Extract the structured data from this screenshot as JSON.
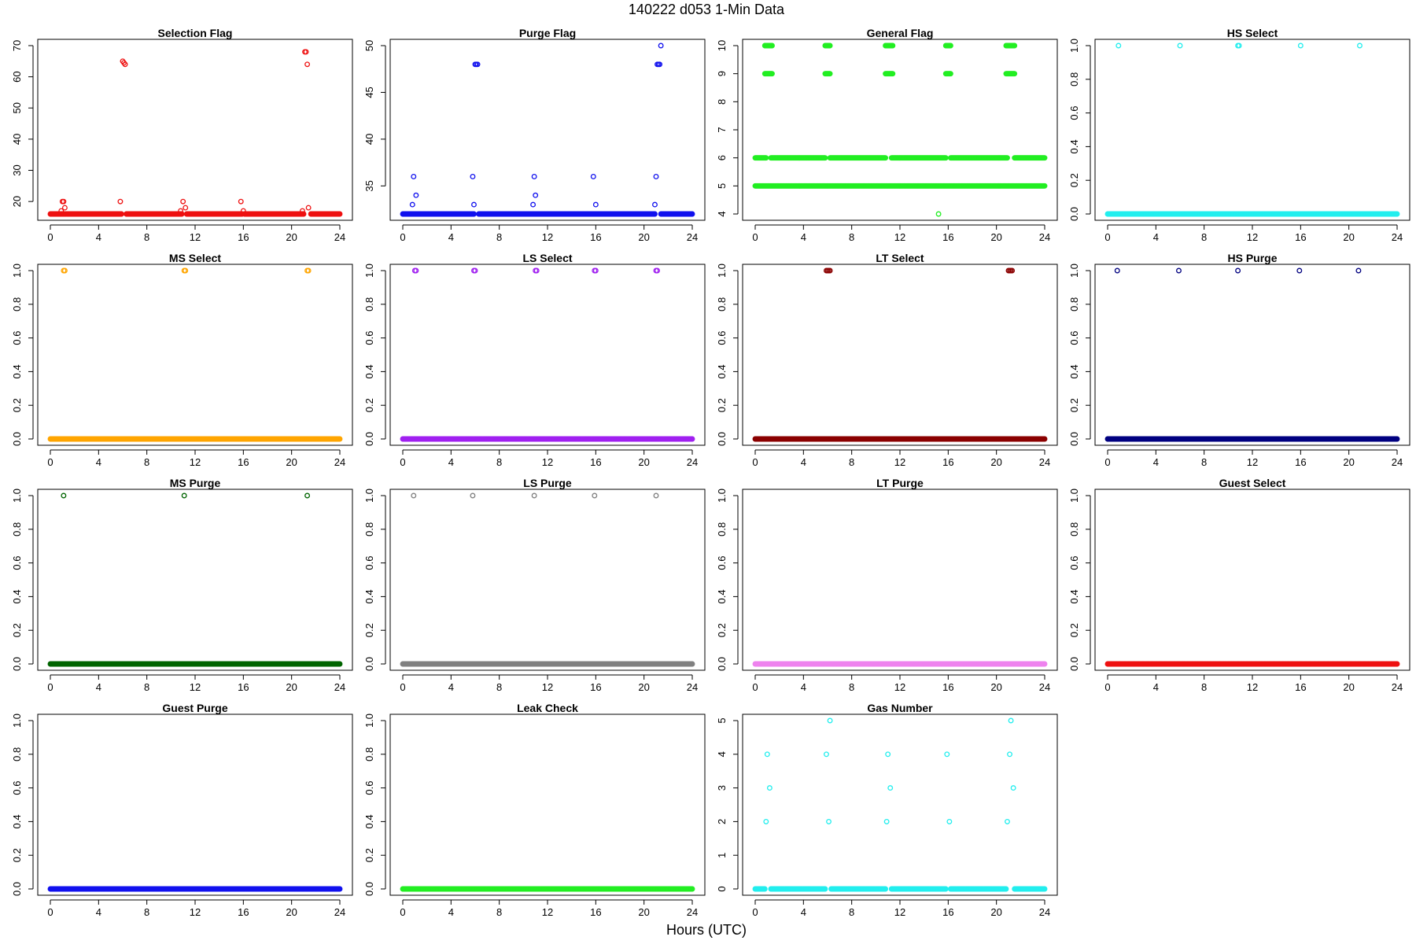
{
  "figure": {
    "title": "140222   d053   1-Min Data",
    "xlabel": "Hours (UTC)"
  },
  "chart_data": [
    {
      "type": "scatter",
      "title": "Selection Flag",
      "color": "#ee1111",
      "xlim": [
        0,
        24
      ],
      "ylim": [
        16,
        70
      ],
      "x_ticks": [
        0,
        4,
        8,
        12,
        16,
        20,
        24
      ],
      "y_ticks": [
        20,
        30,
        40,
        50,
        60,
        70
      ],
      "base_series": [
        {
          "from": 0.0,
          "to": 1.3,
          "y": 16
        },
        {
          "from": 1.4,
          "to": 5.9,
          "y": 16
        },
        {
          "from": 6.3,
          "to": 10.9,
          "y": 16
        },
        {
          "from": 11.3,
          "to": 15.9,
          "y": 16
        },
        {
          "from": 16.1,
          "to": 21.0,
          "y": 16
        },
        {
          "from": 21.6,
          "to": 24.0,
          "y": 16
        }
      ],
      "points": [
        {
          "x": 0.9,
          "y": 17
        },
        {
          "x": 1.0,
          "y": 20
        },
        {
          "x": 1.1,
          "y": 20
        },
        {
          "x": 1.2,
          "y": 18
        },
        {
          "x": 5.8,
          "y": 20
        },
        {
          "x": 6.0,
          "y": 65
        },
        {
          "x": 6.1,
          "y": 64.5
        },
        {
          "x": 6.2,
          "y": 64
        },
        {
          "x": 10.8,
          "y": 17
        },
        {
          "x": 11.0,
          "y": 20
        },
        {
          "x": 11.2,
          "y": 18
        },
        {
          "x": 15.8,
          "y": 20
        },
        {
          "x": 16.0,
          "y": 17
        },
        {
          "x": 20.9,
          "y": 17
        },
        {
          "x": 21.1,
          "y": 68
        },
        {
          "x": 21.2,
          "y": 68
        },
        {
          "x": 21.3,
          "y": 64
        },
        {
          "x": 21.4,
          "y": 18
        }
      ]
    },
    {
      "type": "scatter",
      "title": "Purge Flag",
      "color": "#1111ee",
      "xlim": [
        0,
        24
      ],
      "ylim": [
        32,
        50
      ],
      "x_ticks": [
        0,
        4,
        8,
        12,
        16,
        20,
        24
      ],
      "y_ticks": [
        35,
        40,
        45,
        50
      ],
      "base_series": [
        {
          "from": 0.0,
          "to": 5.9,
          "y": 32
        },
        {
          "from": 6.3,
          "to": 20.9,
          "y": 32
        },
        {
          "from": 21.4,
          "to": 24.0,
          "y": 32
        }
      ],
      "points": [
        {
          "x": 0.8,
          "y": 33
        },
        {
          "x": 0.9,
          "y": 36
        },
        {
          "x": 1.1,
          "y": 34
        },
        {
          "x": 5.8,
          "y": 36
        },
        {
          "x": 5.9,
          "y": 33
        },
        {
          "x": 6.0,
          "y": 48
        },
        {
          "x": 6.1,
          "y": 48
        },
        {
          "x": 6.2,
          "y": 48
        },
        {
          "x": 10.8,
          "y": 33
        },
        {
          "x": 10.9,
          "y": 36
        },
        {
          "x": 11.0,
          "y": 34
        },
        {
          "x": 15.8,
          "y": 36
        },
        {
          "x": 16.0,
          "y": 33
        },
        {
          "x": 20.9,
          "y": 33
        },
        {
          "x": 21.0,
          "y": 36
        },
        {
          "x": 21.1,
          "y": 48
        },
        {
          "x": 21.2,
          "y": 48
        },
        {
          "x": 21.3,
          "y": 48
        },
        {
          "x": 21.4,
          "y": 50
        }
      ]
    },
    {
      "type": "scatter",
      "title": "General Flag",
      "color": "#22ee22",
      "xlim": [
        0,
        24
      ],
      "ylim": [
        4,
        10
      ],
      "x_ticks": [
        0,
        4,
        8,
        12,
        16,
        20,
        24
      ],
      "y_ticks": [
        4,
        5,
        6,
        7,
        8,
        9,
        10
      ],
      "base_series": [
        {
          "from": 0.0,
          "to": 24.0,
          "y": 5
        },
        {
          "from": 0.0,
          "to": 0.9,
          "y": 6
        },
        {
          "from": 1.3,
          "to": 5.8,
          "y": 6
        },
        {
          "from": 6.2,
          "to": 10.8,
          "y": 6
        },
        {
          "from": 11.3,
          "to": 15.8,
          "y": 6
        },
        {
          "from": 16.2,
          "to": 20.9,
          "y": 6
        },
        {
          "from": 21.5,
          "to": 24.0,
          "y": 6
        },
        {
          "from": 0.8,
          "to": 1.4,
          "y": 9
        },
        {
          "from": 0.8,
          "to": 1.4,
          "y": 10
        },
        {
          "from": 5.8,
          "to": 6.2,
          "y": 9
        },
        {
          "from": 5.8,
          "to": 6.2,
          "y": 10
        },
        {
          "from": 10.8,
          "to": 11.4,
          "y": 9
        },
        {
          "from": 10.8,
          "to": 11.4,
          "y": 10
        },
        {
          "from": 15.8,
          "to": 16.2,
          "y": 9
        },
        {
          "from": 15.8,
          "to": 16.2,
          "y": 10
        },
        {
          "from": 20.8,
          "to": 21.5,
          "y": 9
        },
        {
          "from": 20.8,
          "to": 21.5,
          "y": 10
        }
      ],
      "points": [
        {
          "x": 15.2,
          "y": 4
        }
      ]
    },
    {
      "type": "scatter",
      "title": "HS Select",
      "color": "#22eeee",
      "xlim": [
        0,
        24
      ],
      "ylim": [
        0,
        1
      ],
      "x_ticks": [
        0,
        4,
        8,
        12,
        16,
        20,
        24
      ],
      "y_ticks": [
        0.0,
        0.2,
        0.4,
        0.6,
        0.8,
        1.0
      ],
      "base_series": [
        {
          "from": 0.0,
          "to": 24.0,
          "y": 0
        }
      ],
      "points": [
        {
          "x": 0.9,
          "y": 1
        },
        {
          "x": 6.0,
          "y": 1
        },
        {
          "x": 10.8,
          "y": 1
        },
        {
          "x": 10.9,
          "y": 1
        },
        {
          "x": 16.0,
          "y": 1
        },
        {
          "x": 20.9,
          "y": 1
        }
      ]
    },
    {
      "type": "scatter",
      "title": "MS Select",
      "color": "#ffa500",
      "xlim": [
        0,
        24
      ],
      "ylim": [
        0,
        1
      ],
      "x_ticks": [
        0,
        4,
        8,
        12,
        16,
        20,
        24
      ],
      "y_ticks": [
        0.0,
        0.2,
        0.4,
        0.6,
        0.8,
        1.0
      ],
      "base_series": [
        {
          "from": 0.0,
          "to": 24.0,
          "y": 0
        }
      ],
      "points": [
        {
          "x": 1.1,
          "y": 1
        },
        {
          "x": 1.2,
          "y": 1
        },
        {
          "x": 11.1,
          "y": 1
        },
        {
          "x": 11.2,
          "y": 1
        },
        {
          "x": 21.3,
          "y": 1
        },
        {
          "x": 21.4,
          "y": 1
        }
      ]
    },
    {
      "type": "scatter",
      "title": "LS Select",
      "color": "#a020f0",
      "xlim": [
        0,
        24
      ],
      "ylim": [
        0,
        1
      ],
      "x_ticks": [
        0,
        4,
        8,
        12,
        16,
        20,
        24
      ],
      "y_ticks": [
        0.0,
        0.2,
        0.4,
        0.6,
        0.8,
        1.0
      ],
      "base_series": [
        {
          "from": 0.0,
          "to": 24.0,
          "y": 0
        }
      ],
      "points": [
        {
          "x": 1.0,
          "y": 1
        },
        {
          "x": 1.1,
          "y": 1
        },
        {
          "x": 5.9,
          "y": 1
        },
        {
          "x": 6.0,
          "y": 1
        },
        {
          "x": 11.0,
          "y": 1
        },
        {
          "x": 11.1,
          "y": 1
        },
        {
          "x": 15.9,
          "y": 1
        },
        {
          "x": 16.0,
          "y": 1
        },
        {
          "x": 21.0,
          "y": 1
        },
        {
          "x": 21.1,
          "y": 1
        }
      ]
    },
    {
      "type": "scatter",
      "title": "LT Select",
      "color": "#8b0000",
      "xlim": [
        0,
        24
      ],
      "ylim": [
        0,
        1
      ],
      "x_ticks": [
        0,
        4,
        8,
        12,
        16,
        20,
        24
      ],
      "y_ticks": [
        0.0,
        0.2,
        0.4,
        0.6,
        0.8,
        1.0
      ],
      "base_series": [
        {
          "from": 0.0,
          "to": 24.0,
          "y": 0
        }
      ],
      "points": [
        {
          "x": 5.9,
          "y": 1
        },
        {
          "x": 6.0,
          "y": 1
        },
        {
          "x": 6.1,
          "y": 1
        },
        {
          "x": 6.2,
          "y": 1
        },
        {
          "x": 21.0,
          "y": 1
        },
        {
          "x": 21.1,
          "y": 1
        },
        {
          "x": 21.2,
          "y": 1
        },
        {
          "x": 21.3,
          "y": 1
        }
      ]
    },
    {
      "type": "scatter",
      "title": "HS Purge",
      "color": "#000080",
      "xlim": [
        0,
        24
      ],
      "ylim": [
        0,
        1
      ],
      "x_ticks": [
        0,
        4,
        8,
        12,
        16,
        20,
        24
      ],
      "y_ticks": [
        0.0,
        0.2,
        0.4,
        0.6,
        0.8,
        1.0
      ],
      "base_series": [
        {
          "from": 0.0,
          "to": 24.0,
          "y": 0
        }
      ],
      "points": [
        {
          "x": 0.8,
          "y": 1
        },
        {
          "x": 5.9,
          "y": 1
        },
        {
          "x": 10.8,
          "y": 1
        },
        {
          "x": 15.9,
          "y": 1
        },
        {
          "x": 20.8,
          "y": 1
        }
      ]
    },
    {
      "type": "scatter",
      "title": "MS Purge",
      "color": "#006400",
      "xlim": [
        0,
        24
      ],
      "ylim": [
        0,
        1
      ],
      "x_ticks": [
        0,
        4,
        8,
        12,
        16,
        20,
        24
      ],
      "y_ticks": [
        0.0,
        0.2,
        0.4,
        0.6,
        0.8,
        1.0
      ],
      "base_series": [
        {
          "from": 0.0,
          "to": 24.0,
          "y": 0
        }
      ],
      "points": [
        {
          "x": 1.1,
          "y": 1
        },
        {
          "x": 11.1,
          "y": 1
        },
        {
          "x": 21.3,
          "y": 1
        }
      ]
    },
    {
      "type": "scatter",
      "title": "LS Purge",
      "color": "#808080",
      "xlim": [
        0,
        24
      ],
      "ylim": [
        0,
        1
      ],
      "x_ticks": [
        0,
        4,
        8,
        12,
        16,
        20,
        24
      ],
      "y_ticks": [
        0.0,
        0.2,
        0.4,
        0.6,
        0.8,
        1.0
      ],
      "base_series": [
        {
          "from": 0.0,
          "to": 24.0,
          "y": 0
        }
      ],
      "points": [
        {
          "x": 0.9,
          "y": 1
        },
        {
          "x": 5.8,
          "y": 1
        },
        {
          "x": 10.9,
          "y": 1
        },
        {
          "x": 15.9,
          "y": 1
        },
        {
          "x": 21.0,
          "y": 1
        }
      ]
    },
    {
      "type": "scatter",
      "title": "LT Purge",
      "color": "#ee82ee",
      "xlim": [
        0,
        24
      ],
      "ylim": [
        0,
        1
      ],
      "x_ticks": [
        0,
        4,
        8,
        12,
        16,
        20,
        24
      ],
      "y_ticks": [
        0.0,
        0.2,
        0.4,
        0.6,
        0.8,
        1.0
      ],
      "base_series": [
        {
          "from": 0.0,
          "to": 24.0,
          "y": 0
        }
      ],
      "points": []
    },
    {
      "type": "scatter",
      "title": "Guest Select",
      "color": "#ee1111",
      "xlim": [
        0,
        24
      ],
      "ylim": [
        0,
        1
      ],
      "x_ticks": [
        0,
        4,
        8,
        12,
        16,
        20,
        24
      ],
      "y_ticks": [
        0.0,
        0.2,
        0.4,
        0.6,
        0.8,
        1.0
      ],
      "base_series": [
        {
          "from": 0.0,
          "to": 24.0,
          "y": 0
        }
      ],
      "points": []
    },
    {
      "type": "scatter",
      "title": "Guest Purge",
      "color": "#1111ee",
      "xlim": [
        0,
        24
      ],
      "ylim": [
        0,
        1
      ],
      "x_ticks": [
        0,
        4,
        8,
        12,
        16,
        20,
        24
      ],
      "y_ticks": [
        0.0,
        0.2,
        0.4,
        0.6,
        0.8,
        1.0
      ],
      "base_series": [
        {
          "from": 0.0,
          "to": 24.0,
          "y": 0
        }
      ],
      "points": []
    },
    {
      "type": "scatter",
      "title": "Leak Check",
      "color": "#22ee22",
      "xlim": [
        0,
        24
      ],
      "ylim": [
        0,
        1
      ],
      "x_ticks": [
        0,
        4,
        8,
        12,
        16,
        20,
        24
      ],
      "y_ticks": [
        0.0,
        0.2,
        0.4,
        0.6,
        0.8,
        1.0
      ],
      "base_series": [
        {
          "from": 0.0,
          "to": 24.0,
          "y": 0
        }
      ],
      "points": []
    },
    {
      "type": "scatter",
      "title": "Gas Number",
      "color": "#22eeee",
      "xlim": [
        0,
        24
      ],
      "ylim": [
        0,
        5
      ],
      "x_ticks": [
        0,
        4,
        8,
        12,
        16,
        20,
        24
      ],
      "y_ticks": [
        0,
        1,
        2,
        3,
        4,
        5
      ],
      "base_series": [
        {
          "from": 0.0,
          "to": 0.8,
          "y": 0
        },
        {
          "from": 1.3,
          "to": 5.8,
          "y": 0
        },
        {
          "from": 6.3,
          "to": 10.8,
          "y": 0
        },
        {
          "from": 11.3,
          "to": 15.8,
          "y": 0
        },
        {
          "from": 16.2,
          "to": 20.8,
          "y": 0
        },
        {
          "from": 21.5,
          "to": 24.0,
          "y": 0
        }
      ],
      "points": [
        {
          "x": 0.9,
          "y": 2
        },
        {
          "x": 1.0,
          "y": 4
        },
        {
          "x": 1.2,
          "y": 3
        },
        {
          "x": 5.9,
          "y": 4
        },
        {
          "x": 6.1,
          "y": 2
        },
        {
          "x": 6.2,
          "y": 5
        },
        {
          "x": 10.9,
          "y": 2
        },
        {
          "x": 11.0,
          "y": 4
        },
        {
          "x": 11.2,
          "y": 3
        },
        {
          "x": 15.9,
          "y": 4
        },
        {
          "x": 16.1,
          "y": 2
        },
        {
          "x": 20.9,
          "y": 2
        },
        {
          "x": 21.1,
          "y": 4
        },
        {
          "x": 21.2,
          "y": 5
        },
        {
          "x": 21.4,
          "y": 3
        }
      ]
    }
  ]
}
